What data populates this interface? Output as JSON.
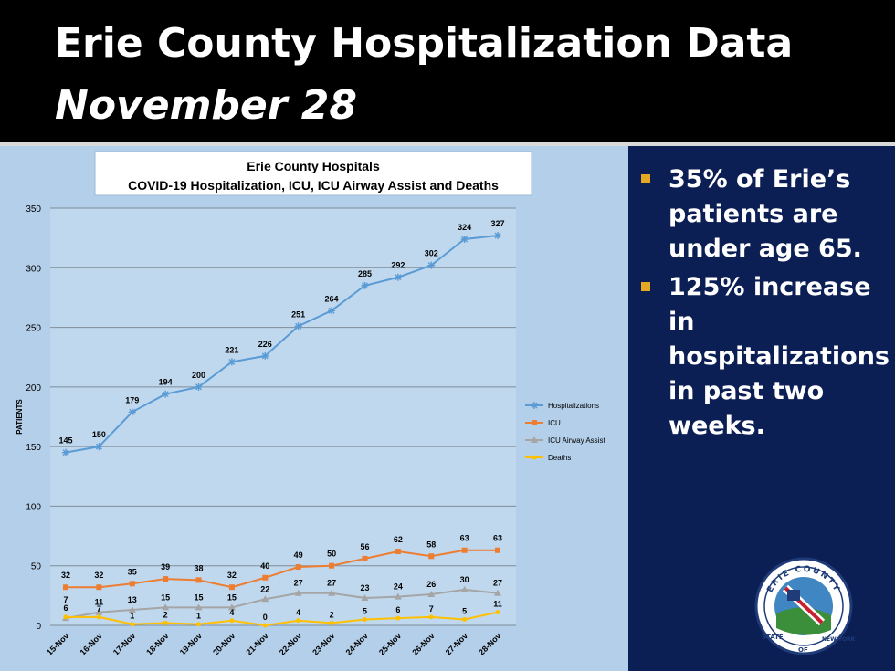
{
  "slide": {
    "title_line1": "Erie County Hospitalization Data",
    "title_line2": "November 28"
  },
  "bullets": [
    "35% of Erie’s patients are under age 65.",
    "125% increase in hospitalizations in past two weeks."
  ],
  "seal": {
    "top_text": "ERIE COUNTY",
    "left_text": "STATE",
    "bottom_text": "OF",
    "right_text": "NEW YORK"
  },
  "colors": {
    "header_bg": "#000000",
    "slide_bg": "#0c1f55",
    "chart_bg": "#b4cfe9",
    "bullet_marker": "#e5a823"
  },
  "chart_data": {
    "type": "line",
    "title": "Erie County Hospitals",
    "subtitle": "COVID-19 Hospitalization, ICU, ICU Airway Assist and Deaths",
    "xlabel": "",
    "ylabel": "PATIENTS",
    "ylim": [
      0,
      350
    ],
    "yticks": [
      0,
      50,
      100,
      150,
      200,
      250,
      300,
      350
    ],
    "grid": true,
    "legend_position": "right",
    "categories": [
      "15-Nov",
      "16-Nov",
      "17-Nov",
      "18-Nov",
      "19-Nov",
      "20-Nov",
      "21-Nov",
      "22-Nov",
      "23-Nov",
      "24-Nov",
      "25-Nov",
      "26-Nov",
      "27-Nov",
      "28-Nov"
    ],
    "series": [
      {
        "name": "Hospitalizations",
        "color": "#5b9bd5",
        "marker": "star",
        "values": [
          145,
          150,
          179,
          194,
          200,
          221,
          226,
          251,
          264,
          285,
          292,
          302,
          324,
          327
        ]
      },
      {
        "name": "ICU",
        "color": "#ed7d31",
        "marker": "square",
        "values": [
          32,
          32,
          35,
          39,
          38,
          32,
          40,
          49,
          50,
          56,
          62,
          58,
          63,
          63
        ]
      },
      {
        "name": "ICU Airway Assist",
        "color": "#a5a5a5",
        "marker": "triangle",
        "values": [
          6,
          11,
          13,
          15,
          15,
          15,
          22,
          27,
          27,
          23,
          24,
          26,
          30,
          27
        ]
      },
      {
        "name": "Deaths",
        "color": "#ffc000",
        "marker": "circle",
        "values": [
          7,
          7,
          1,
          2,
          1,
          4,
          0,
          4,
          2,
          5,
          6,
          7,
          5,
          11
        ]
      }
    ]
  }
}
